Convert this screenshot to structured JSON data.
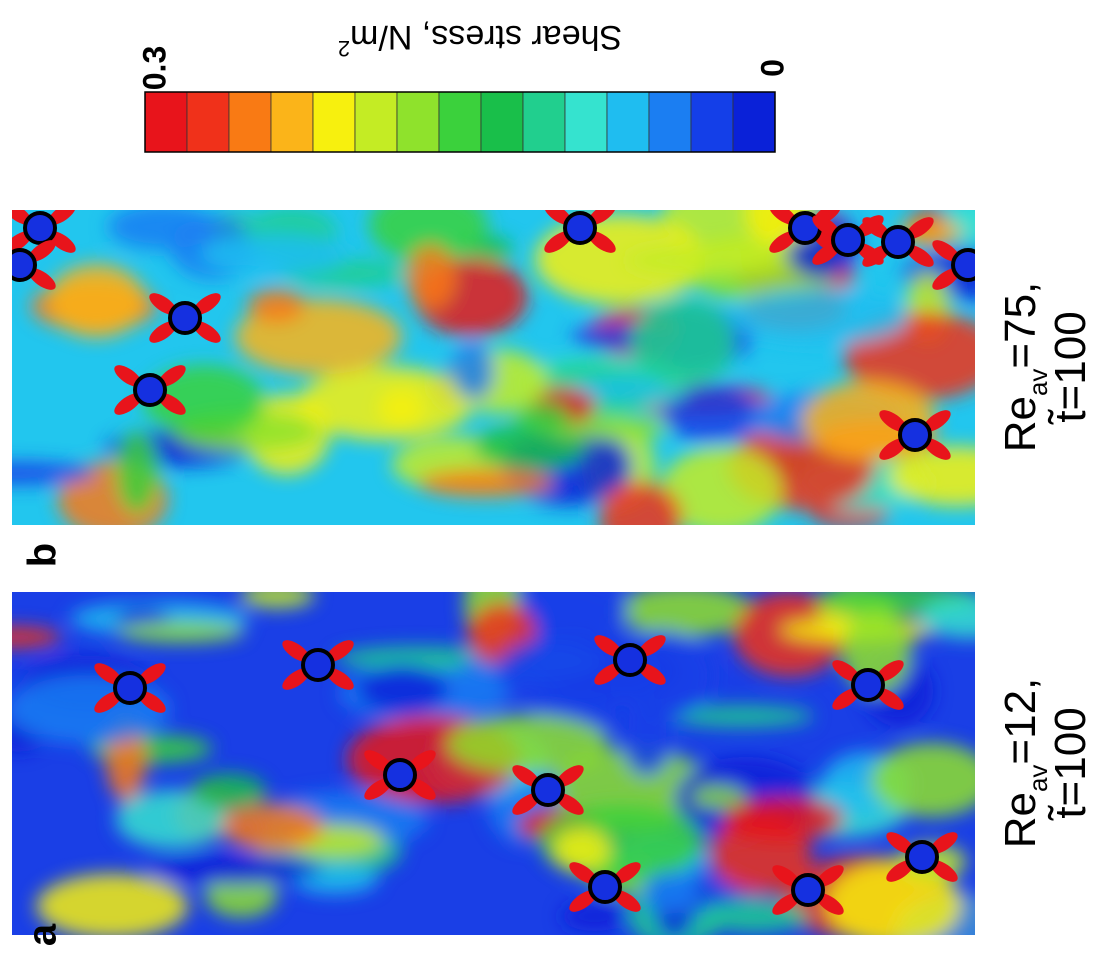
{
  "figure": {
    "colorbar": {
      "label": "Shear stress, N/m",
      "label_sup": "2",
      "ticks": [
        0.3,
        0
      ],
      "colors": [
        "#e8141b",
        "#f0311a",
        "#f97a14",
        "#fbb419",
        "#f7f00e",
        "#c4ec24",
        "#8fe22c",
        "#3bd13c",
        "#19bf4a",
        "#21cf8e",
        "#35e3cf",
        "#1fbdf0",
        "#1b7ef2",
        "#143fe8",
        "#0a21d8"
      ]
    },
    "panels": [
      {
        "label": "a",
        "symbol": "Re",
        "subscript": "av",
        "rest": "=12,",
        "time": "t̃=100"
      },
      {
        "label": "b",
        "symbol": "Re",
        "subscript": "av",
        "rest": "=75,",
        "time": "t̃=100"
      }
    ]
  }
}
